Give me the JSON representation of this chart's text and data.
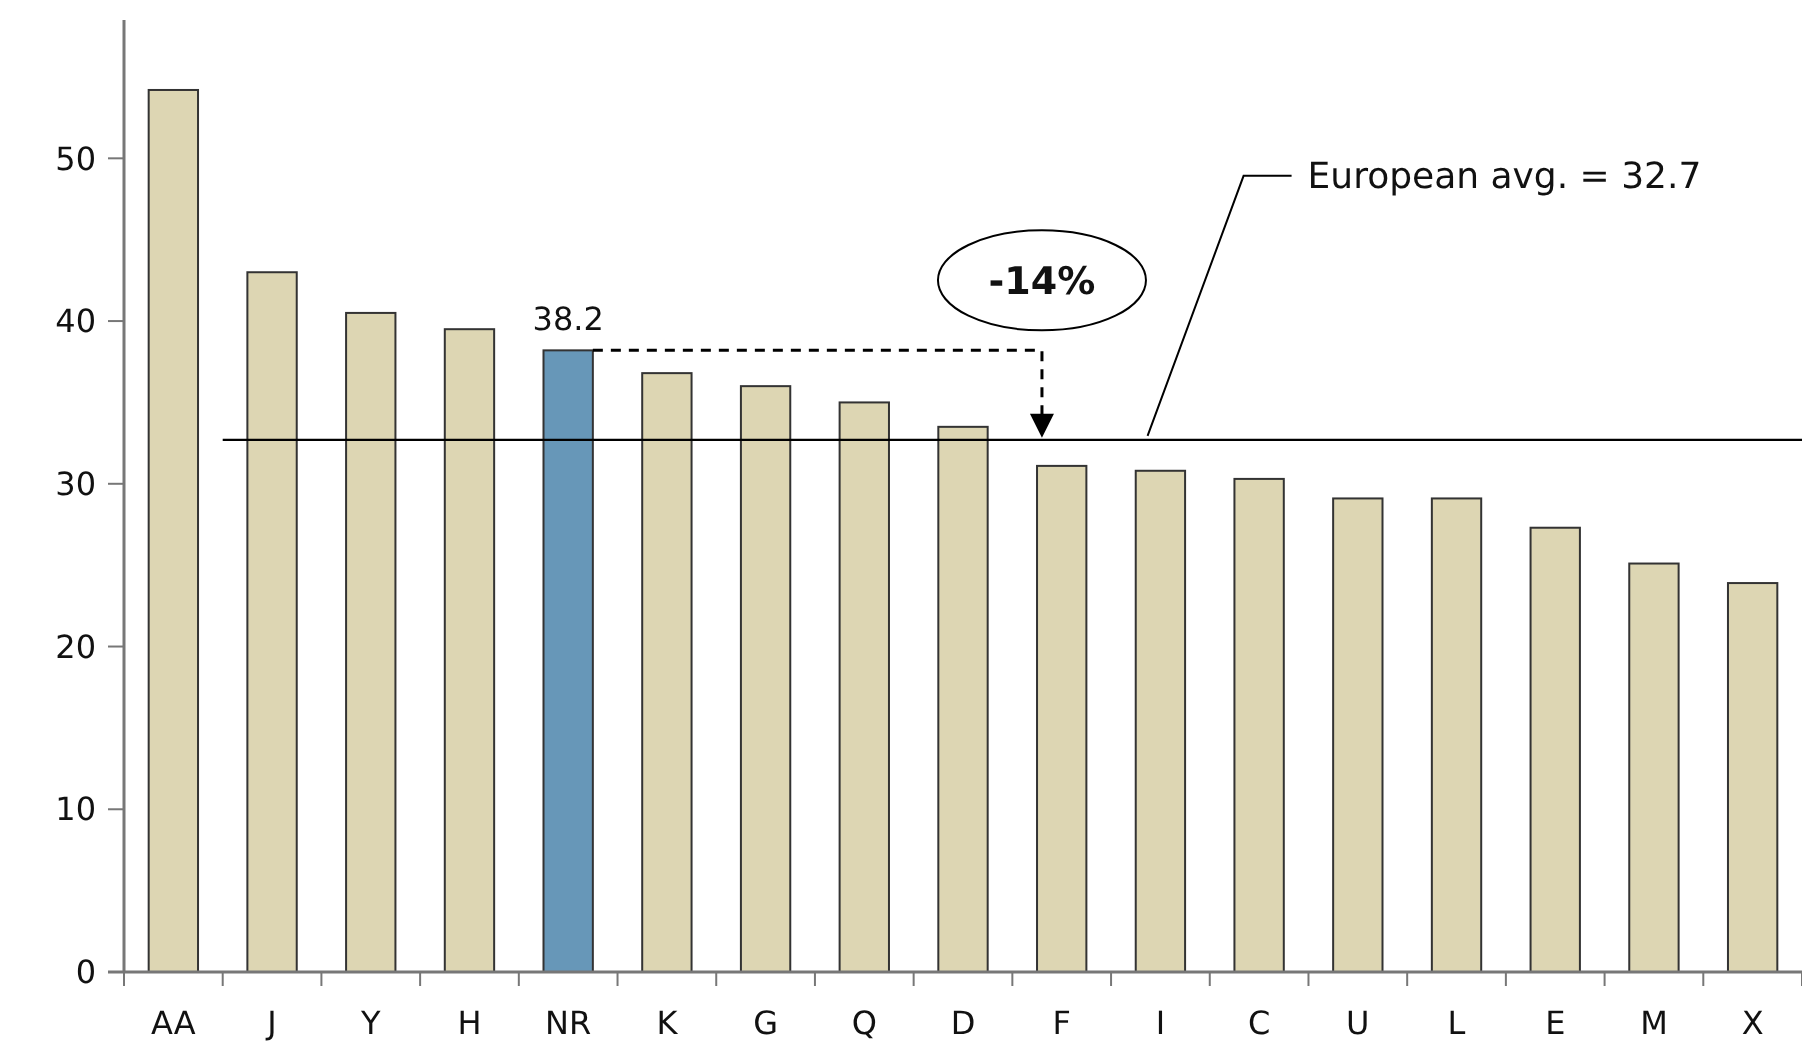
{
  "chart_data": {
    "type": "bar",
    "categories": [
      "AA",
      "J",
      "Y",
      "H",
      "NR",
      "K",
      "G",
      "Q",
      "D",
      "F",
      "I",
      "C",
      "U",
      "L",
      "E",
      "M",
      "X"
    ],
    "values": [
      54.2,
      43.0,
      40.5,
      39.5,
      38.2,
      36.8,
      36.0,
      35.0,
      33.5,
      31.1,
      30.8,
      30.3,
      29.1,
      29.1,
      27.3,
      25.1,
      23.9
    ],
    "colors": [
      "#ddd6b3",
      "#ddd6b3",
      "#ddd6b3",
      "#ddd6b3",
      "#6797b8",
      "#ddd6b3",
      "#ddd6b3",
      "#ddd6b3",
      "#ddd6b3",
      "#ddd6b3",
      "#ddd6b3",
      "#ddd6b3",
      "#ddd6b3",
      "#ddd6b3",
      "#ddd6b3",
      "#ddd6b3",
      "#ddd6b3"
    ],
    "value_labels": [
      null,
      null,
      null,
      null,
      "38.2",
      null,
      null,
      null,
      null,
      null,
      null,
      null,
      null,
      null,
      null,
      null,
      null
    ],
    "ylim": [
      0,
      58.5
    ],
    "yticks": [
      0,
      10,
      20,
      30,
      40,
      50
    ],
    "ref_lines": [
      {
        "axis": "y",
        "value": 32.7,
        "label": "European avg. = 32.7",
        "color": "#000000"
      }
    ],
    "annotations": [
      "-14%"
    ],
    "grid": false
  }
}
